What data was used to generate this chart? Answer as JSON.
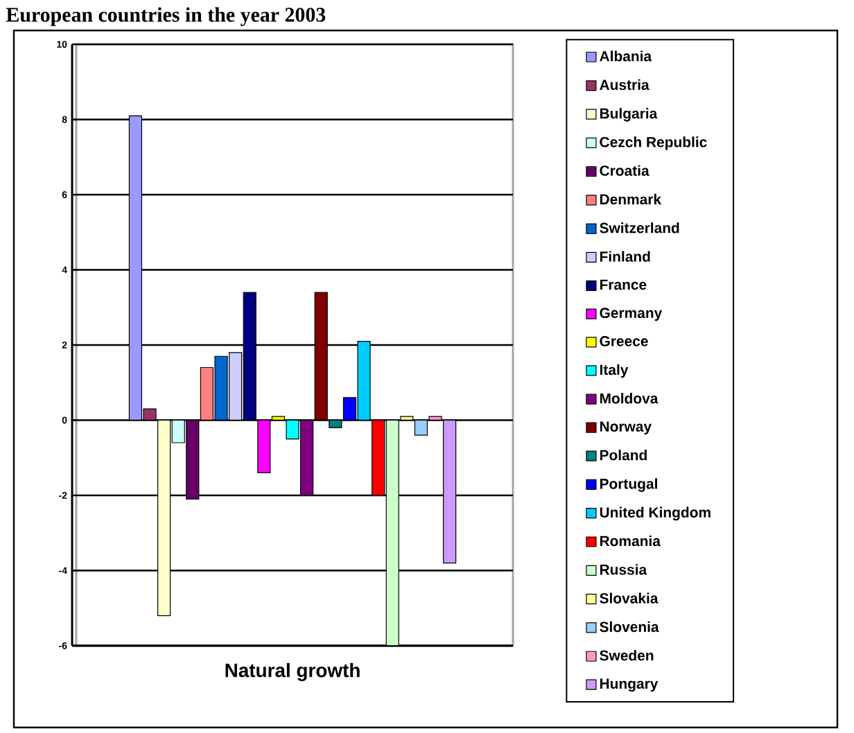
{
  "chart_data": {
    "type": "bar",
    "title": "European countries in the year 2003",
    "categories": [
      "Natural growth"
    ],
    "series": [
      {
        "name": "Albania",
        "color": "#9999ff",
        "values": [
          8.1
        ]
      },
      {
        "name": "Austria",
        "color": "#993366",
        "values": [
          0.3
        ]
      },
      {
        "name": "Bulgaria",
        "color": "#ffffcc",
        "values": [
          -5.2
        ]
      },
      {
        "name": "Cezch Republic",
        "color": "#ccffff",
        "values": [
          -0.6
        ]
      },
      {
        "name": "Croatia",
        "color": "#660066",
        "values": [
          -2.1
        ]
      },
      {
        "name": "Denmark",
        "color": "#ff8080",
        "values": [
          1.4
        ]
      },
      {
        "name": "Switzerland",
        "color": "#0066cc",
        "values": [
          1.7
        ]
      },
      {
        "name": "Finland",
        "color": "#ccccff",
        "values": [
          1.8
        ]
      },
      {
        "name": "France",
        "color": "#000080",
        "values": [
          3.4
        ]
      },
      {
        "name": "Germany",
        "color": "#ff00ff",
        "values": [
          -1.4
        ]
      },
      {
        "name": "Greece",
        "color": "#ffff00",
        "values": [
          0.1
        ]
      },
      {
        "name": "Italy",
        "color": "#00ffff",
        "values": [
          -0.5
        ]
      },
      {
        "name": "Moldova",
        "color": "#800080",
        "values": [
          -2.0
        ]
      },
      {
        "name": "Norway",
        "color": "#800000",
        "values": [
          3.4
        ]
      },
      {
        "name": "Poland",
        "color": "#008080",
        "values": [
          -0.2
        ]
      },
      {
        "name": "Portugal",
        "color": "#0000ff",
        "values": [
          0.6
        ]
      },
      {
        "name": "United Kingdom",
        "color": "#00ccff",
        "values": [
          2.1
        ]
      },
      {
        "name": "Romania",
        "color": "#ff0000",
        "values": [
          -2.0
        ]
      },
      {
        "name": "Russia",
        "color": "#ccffcc",
        "values": [
          -6.0
        ]
      },
      {
        "name": "Slovakia",
        "color": "#ffff99",
        "values": [
          0.1
        ]
      },
      {
        "name": "Slovenia",
        "color": "#99ccff",
        "values": [
          -0.4
        ]
      },
      {
        "name": "Sweden",
        "color": "#ff99cc",
        "values": [
          0.1
        ]
      },
      {
        "name": "Hungary",
        "color": "#cc99ff",
        "values": [
          -3.8
        ]
      }
    ],
    "ylim": [
      -6,
      10
    ],
    "yticks": [
      -6,
      -4,
      -2,
      0,
      2,
      4,
      6,
      8,
      10
    ],
    "grid": "y",
    "legend": "right"
  }
}
